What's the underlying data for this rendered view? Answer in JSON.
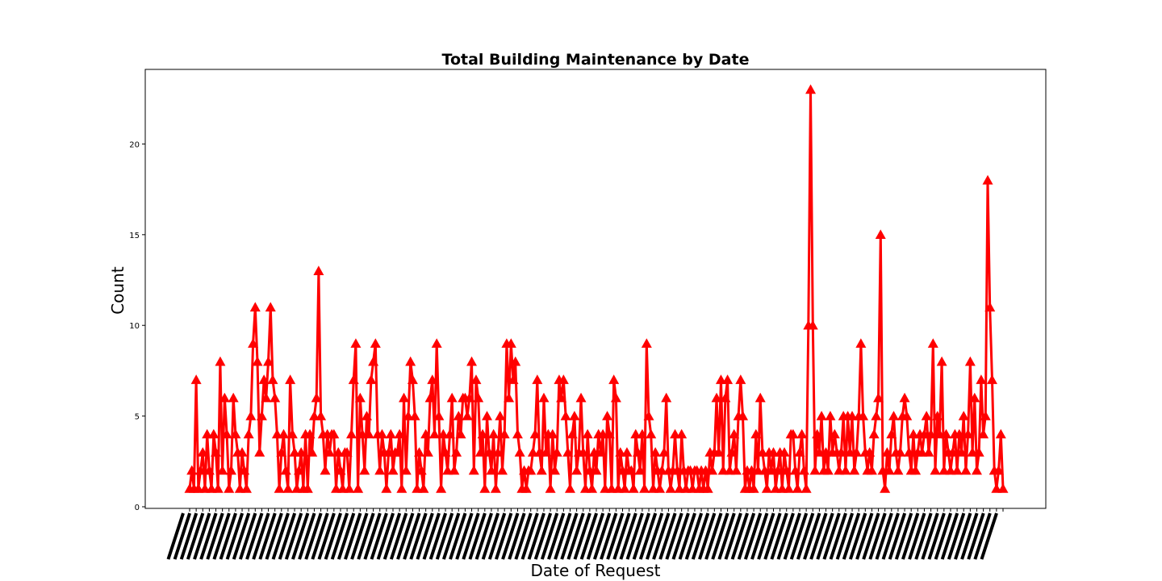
{
  "chart_data": {
    "type": "line",
    "title": "Total Building Maintenance by Date",
    "xlabel": "Date of Request",
    "ylabel": "Count",
    "ylim": [
      0,
      24
    ],
    "yticks": [
      0,
      5,
      10,
      15,
      20
    ],
    "grid": false,
    "legend": "none",
    "series": [
      {
        "marker": "triangle-up",
        "color": "#ff0000",
        "values": [
          1,
          2,
          1,
          7,
          1,
          2,
          3,
          1,
          4,
          2,
          1,
          4,
          3,
          1,
          8,
          2,
          6,
          4,
          1,
          2,
          6,
          4,
          3,
          1,
          3,
          2,
          1,
          4,
          5,
          9,
          11,
          8,
          3,
          5,
          7,
          6,
          8,
          11,
          7,
          6,
          4,
          1,
          3,
          4,
          2,
          1,
          7,
          4,
          3,
          1,
          2,
          3,
          1,
          4,
          1,
          4,
          3,
          5,
          6,
          13,
          5,
          4,
          2,
          4,
          3,
          4,
          4,
          1,
          3,
          2,
          1,
          3,
          3,
          1,
          4,
          7,
          9,
          1,
          6,
          4,
          2,
          5,
          4,
          7,
          8,
          9,
          4,
          2,
          4,
          3,
          1,
          3,
          4,
          2,
          3,
          3,
          4,
          1,
          6,
          2,
          5,
          8,
          7,
          5,
          1,
          3,
          2,
          1,
          4,
          3,
          6,
          7,
          4,
          9,
          5,
          1,
          4,
          3,
          2,
          4,
          6,
          2,
          3,
          5,
          4,
          6,
          6,
          5,
          6,
          8,
          2,
          7,
          6,
          3,
          4,
          1,
          5,
          3,
          2,
          4,
          1,
          3,
          5,
          2,
          4,
          9,
          6,
          9,
          7,
          8,
          4,
          3,
          1,
          2,
          1,
          2,
          2,
          3,
          4,
          7,
          3,
          2,
          6,
          3,
          4,
          1,
          4,
          2,
          3,
          7,
          6,
          7,
          5,
          3,
          1,
          4,
          5,
          2,
          3,
          6,
          3,
          1,
          4,
          2,
          1,
          3,
          2,
          4,
          3,
          4,
          1,
          5,
          4,
          1,
          7,
          6,
          1,
          3,
          2,
          1,
          3,
          2,
          2,
          1,
          4,
          3,
          2,
          4,
          1,
          9,
          5,
          4,
          1,
          3,
          2,
          1,
          2,
          3,
          6,
          2,
          1,
          2,
          4,
          2,
          1,
          4,
          2,
          1,
          2,
          2,
          1,
          2,
          2,
          1,
          2,
          1,
          2,
          1,
          3,
          2,
          3,
          6,
          3,
          7,
          2,
          6,
          7,
          2,
          3,
          4,
          2,
          5,
          7,
          5,
          1,
          2,
          1,
          2,
          1,
          4,
          2,
          6,
          3,
          2,
          1,
          3,
          2,
          3,
          1,
          2,
          3,
          1,
          3,
          2,
          1,
          4,
          4,
          2,
          1,
          3,
          4,
          2,
          1,
          10,
          23,
          10,
          2,
          4,
          3,
          5,
          2,
          3,
          2,
          5,
          3,
          4,
          3,
          2,
          3,
          5,
          2,
          5,
          3,
          5,
          2,
          3,
          5,
          9,
          5,
          3,
          2,
          3,
          2,
          4,
          5,
          6,
          15,
          2,
          1,
          3,
          2,
          4,
          5,
          3,
          2,
          3,
          5,
          6,
          5,
          3,
          2,
          4,
          2,
          3,
          4,
          3,
          4,
          5,
          3,
          4,
          9,
          2,
          5,
          4,
          8,
          2,
          4,
          3,
          2,
          3,
          4,
          2,
          4,
          3,
          5,
          2,
          4,
          8,
          3,
          6,
          2,
          3,
          7,
          4,
          5,
          18,
          11,
          7,
          2,
          1,
          2,
          4,
          1
        ]
      }
    ]
  }
}
